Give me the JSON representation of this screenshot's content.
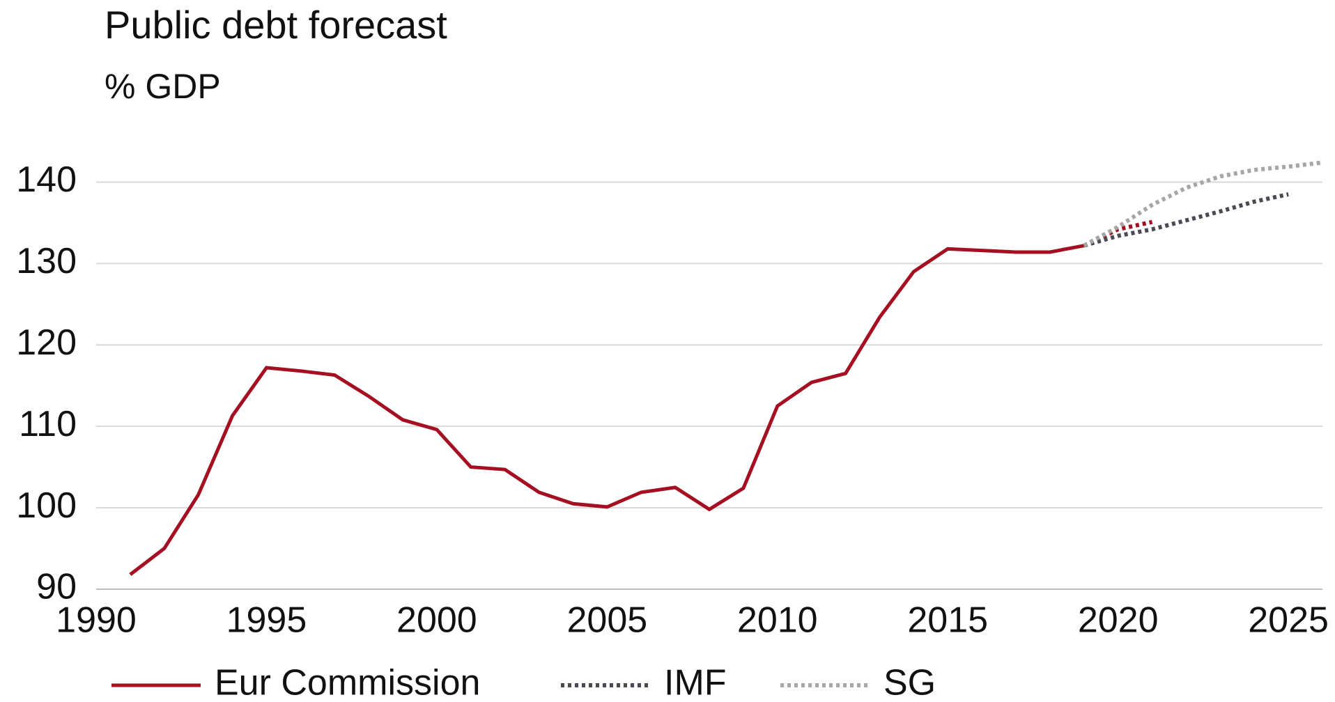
{
  "chart_data": {
    "type": "line",
    "title": "Public debt forecast",
    "subtitle": "% GDP",
    "forecast_from": 2019,
    "series": [
      {
        "name": "Eur Commission",
        "color": "#a50f22",
        "x": [
          1991,
          1992,
          1993,
          1994,
          1995,
          1996,
          1997,
          1998,
          1999,
          2000,
          2001,
          2002,
          2003,
          2004,
          2005,
          2006,
          2007,
          2008,
          2009,
          2010,
          2011,
          2012,
          2013,
          2014,
          2015,
          2016,
          2017,
          2018,
          2019,
          2020,
          2021
        ],
        "values": [
          91.8,
          95.0,
          101.6,
          111.3,
          117.2,
          116.8,
          116.3,
          113.7,
          110.8,
          109.6,
          105.0,
          104.7,
          101.9,
          100.5,
          100.1,
          101.9,
          102.5,
          99.8,
          102.4,
          112.5,
          115.4,
          116.5,
          123.4,
          129.0,
          131.8,
          131.6,
          131.4,
          131.4,
          132.2,
          134.2,
          135.1
        ]
      },
      {
        "name": "IMF",
        "color": "#4a4a55",
        "x": [
          2019,
          2020,
          2021,
          2022,
          2023,
          2024,
          2025
        ],
        "values": [
          132.2,
          133.4,
          134.2,
          135.3,
          136.4,
          137.6,
          138.5
        ]
      },
      {
        "name": "SG",
        "color": "#a6a6a6",
        "x": [
          2019,
          2020,
          2021,
          2022,
          2023,
          2024,
          2025,
          2026
        ],
        "values": [
          132.2,
          134.5,
          137.2,
          139.3,
          140.7,
          141.5,
          141.9,
          142.4
        ]
      }
    ],
    "xlim": [
      1990,
      2026
    ],
    "xticks": [
      1990,
      1995,
      2000,
      2005,
      2010,
      2015,
      2020,
      2025
    ],
    "ylim": [
      90,
      145
    ],
    "yticks": [
      90,
      100,
      110,
      120,
      130,
      140
    ],
    "grid": true
  }
}
